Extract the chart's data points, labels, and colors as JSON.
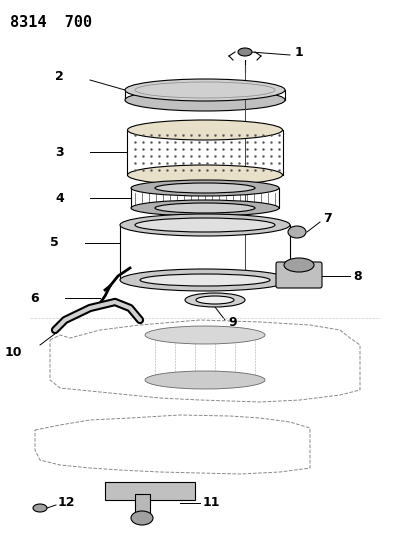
{
  "title": "8314  700",
  "bg_color": "#ffffff",
  "line_color": "#000000",
  "label_color": "#000000",
  "title_fontsize": 11,
  "label_fontsize": 9,
  "figsize": [
    3.99,
    5.33
  ],
  "dpi": 100
}
